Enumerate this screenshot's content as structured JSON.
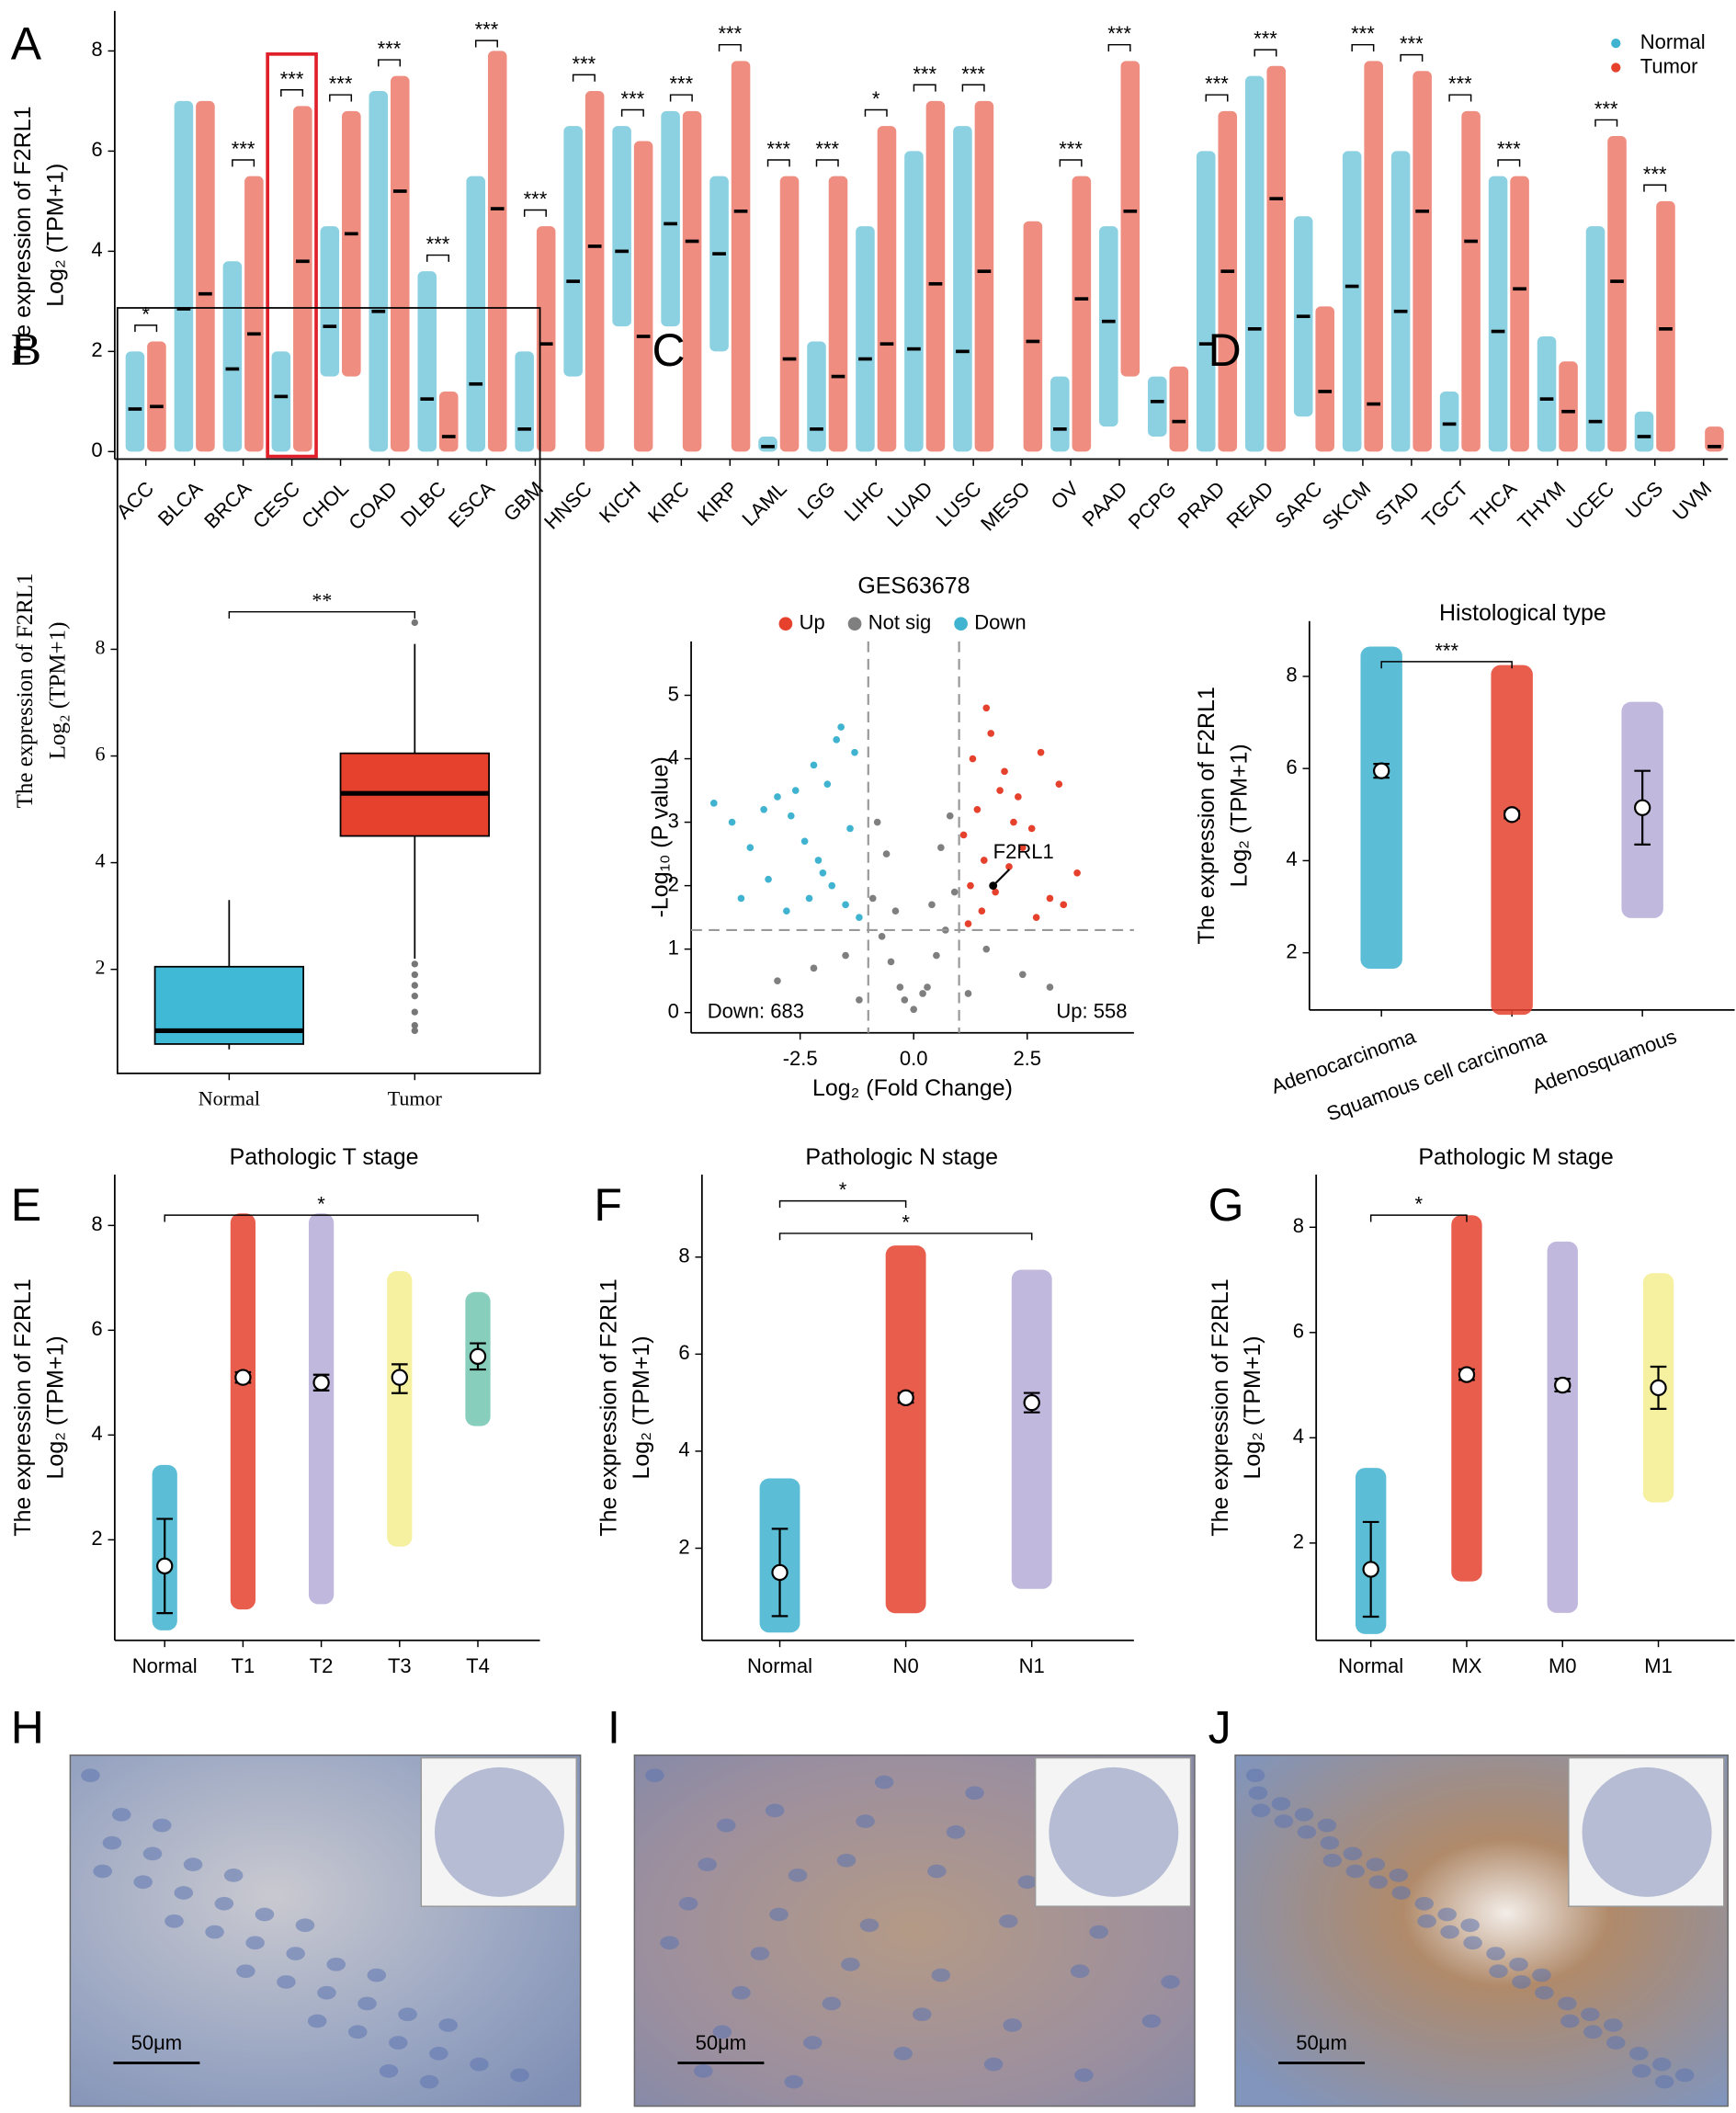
{
  "chart_data": [
    {
      "type": "strip",
      "label": "A",
      "ylabel": [
        "The expression of F2RL1",
        "Log₂ (TPM+1)"
      ],
      "categories": [
        "ACC",
        "BLCA",
        "BRCA",
        "CESC",
        "CHOL",
        "COAD",
        "DLBC",
        "ESCA",
        "GBM",
        "HNSC",
        "KICH",
        "KIRC",
        "KIRP",
        "LAML",
        "LGG",
        "LIHC",
        "LUAD",
        "LUSC",
        "MESO",
        "OV",
        "PAAD",
        "PCPG",
        "PRAD",
        "READ",
        "SARC",
        "SKCM",
        "STAD",
        "TGCT",
        "THCA",
        "THYM",
        "UCEC",
        "UCS",
        "UVM"
      ],
      "series": [
        {
          "name": "Normal",
          "color": "#3fb3cf",
          "values": [
            0.85,
            2.85,
            1.65,
            1.1,
            2.5,
            2.8,
            1.05,
            1.35,
            0.45,
            3.4,
            4.0,
            4.55,
            3.95,
            0.1,
            0.45,
            1.85,
            2.05,
            2.0,
            null,
            0.45,
            2.6,
            1.0,
            2.15,
            2.45,
            2.7,
            3.3,
            2.8,
            0.55,
            2.4,
            1.05,
            0.6,
            0.3,
            null
          ],
          "low": [
            0,
            0,
            0,
            0,
            1.5,
            0,
            0,
            0,
            0,
            1.5,
            2.5,
            2.5,
            2.0,
            0,
            0,
            0,
            0,
            0,
            null,
            0,
            0.5,
            0.3,
            0,
            0,
            0.7,
            0,
            0,
            0,
            0,
            0,
            0,
            0,
            null
          ],
          "high": [
            2.0,
            7.0,
            3.8,
            2.0,
            4.5,
            7.2,
            3.6,
            5.5,
            2.0,
            6.5,
            6.5,
            6.8,
            5.5,
            0.3,
            2.2,
            4.5,
            6.0,
            6.5,
            null,
            1.5,
            4.5,
            1.5,
            6.0,
            7.5,
            4.7,
            6.0,
            6.0,
            1.2,
            5.5,
            2.3,
            4.5,
            0.8,
            null
          ]
        },
        {
          "name": "Tumor",
          "color": "#e5412d",
          "values": [
            0.9,
            3.15,
            2.35,
            3.8,
            4.35,
            5.2,
            0.3,
            4.85,
            2.15,
            4.1,
            2.3,
            4.2,
            4.8,
            1.85,
            1.5,
            2.15,
            3.35,
            3.6,
            2.2,
            3.05,
            4.8,
            0.6,
            3.6,
            5.05,
            1.2,
            0.95,
            4.8,
            4.2,
            3.25,
            0.8,
            3.4,
            2.45,
            0.1
          ],
          "low": [
            0,
            0,
            0,
            0,
            1.5,
            0,
            0,
            0,
            0,
            0,
            0,
            0,
            0,
            0,
            0,
            0,
            0,
            0,
            0,
            0,
            1.5,
            0,
            0,
            0,
            0,
            0,
            0,
            0,
            0,
            0,
            0,
            0,
            0
          ],
          "high": [
            2.2,
            7.0,
            5.5,
            6.9,
            6.8,
            7.5,
            1.2,
            8.0,
            4.5,
            7.2,
            6.2,
            6.8,
            7.8,
            5.5,
            5.5,
            6.5,
            7.0,
            7.0,
            4.6,
            5.5,
            7.8,
            1.7,
            6.8,
            7.7,
            2.9,
            7.8,
            7.6,
            6.8,
            5.5,
            1.8,
            6.3,
            5.0,
            0.5
          ]
        }
      ],
      "significance": [
        "*",
        null,
        "***",
        "***",
        "***",
        "***",
        "***",
        "***",
        "***",
        "***",
        "***",
        "***",
        "***",
        "***",
        "***",
        "*",
        "***",
        "***",
        null,
        "***",
        "***",
        null,
        "***",
        "***",
        null,
        "***",
        "***",
        "***",
        "***",
        null,
        "***",
        "***",
        null
      ],
      "highlight": "CESC",
      "ylim": [
        -0.15,
        8.8
      ],
      "yticks": [
        0,
        2,
        4,
        6,
        8
      ],
      "legend": "top-right"
    },
    {
      "type": "box",
      "label": "B",
      "ylabel": [
        "The expression of F2RL1",
        "Log₂ (TPM+1)"
      ],
      "categories": [
        "Normal",
        "Tumor"
      ],
      "colors": [
        "#3fb9d6",
        "#e5412d"
      ],
      "whisker_low": [
        0.5,
        2.2
      ],
      "q1": [
        0.6,
        4.5
      ],
      "median": [
        0.85,
        5.3
      ],
      "q3": [
        2.05,
        6.05
      ],
      "whisker_high": [
        3.3,
        8.1
      ],
      "outliers": [
        [],
        [
          8.5,
          2.1,
          1.9,
          1.7,
          1.5,
          1.2,
          0.95,
          0.85
        ]
      ],
      "comparisons": [
        {
          "groups": [
            "Normal",
            "Tumor"
          ],
          "label": "**"
        }
      ],
      "ylim": [
        0.05,
        14.4
      ],
      "yticks": [
        2,
        4,
        6,
        8
      ]
    },
    {
      "type": "volcano",
      "label": "C",
      "title": "GES63678",
      "xlabel": "Log₂ (Fold Change)",
      "ylabel": [
        "-Log₁₀ (P value)"
      ],
      "series": [
        {
          "name": "Up",
          "color": "#e5412d",
          "x": [
            1.2,
            1.5,
            1.8,
            2.1,
            2.4,
            2.7,
            3.0,
            3.3,
            3.6,
            1.1,
            1.4,
            1.9,
            2.2,
            2.6,
            1.3,
            1.7,
            2.0,
            2.3,
            1.6,
            2.8,
            3.2,
            1.25,
            1.55
          ],
          "values": [
            1.4,
            1.6,
            1.9,
            2.3,
            2.6,
            1.5,
            1.8,
            1.7,
            2.2,
            2.8,
            3.2,
            3.5,
            3.0,
            2.9,
            4.0,
            4.4,
            3.8,
            3.4,
            4.8,
            4.1,
            3.6,
            2.0,
            2.4
          ]
        },
        {
          "name": "Not sig",
          "color": "#7f7f7f",
          "x": [
            -0.9,
            -0.7,
            -0.5,
            -0.3,
            0,
            0.3,
            0.5,
            0.7,
            0.9,
            -0.6,
            0.6,
            -0.2,
            0.2,
            -0.8,
            0.8,
            -1.5,
            -2.2,
            1.6,
            2.4,
            -3,
            3,
            -0.4,
            0.4,
            1.2,
            -1.2
          ],
          "values": [
            1.8,
            1.2,
            0.8,
            0.4,
            0.05,
            0.4,
            0.9,
            1.3,
            1.9,
            2.5,
            2.6,
            0.2,
            0.3,
            3.0,
            3.1,
            0.9,
            0.7,
            1.0,
            0.6,
            0.5,
            0.4,
            1.6,
            1.7,
            0.3,
            0.2
          ]
        },
        {
          "name": "Down",
          "color": "#3fb3cf",
          "x": [
            -1.2,
            -1.5,
            -1.8,
            -2.1,
            -2.4,
            -2.7,
            -3.0,
            -3.3,
            -3.6,
            -4.0,
            -4.4,
            -1.4,
            -1.9,
            -2.2,
            -2.6,
            -1.3,
            -1.7,
            -2.0,
            -2.3,
            -2.8,
            -3.2,
            -3.8,
            -1.6
          ],
          "values": [
            1.5,
            1.7,
            2.0,
            2.4,
            2.7,
            3.1,
            3.4,
            3.2,
            2.6,
            3.0,
            3.3,
            2.9,
            3.6,
            3.9,
            3.5,
            4.1,
            4.3,
            2.2,
            1.8,
            1.6,
            2.1,
            1.8,
            4.5
          ]
        }
      ],
      "highlight_point": {
        "label": "F2RL1",
        "x": 1.75,
        "y": 2.0
      },
      "down_count_label": "Down: 683",
      "up_count_label": "Up: 558",
      "fc_thresholds": [
        -1,
        1
      ],
      "p_threshold": 1.3,
      "xlim": [
        -4.9,
        4.85
      ],
      "xticks": [
        -2.5,
        {
          "value": 0,
          "label": "0.0"
        },
        2.5
      ],
      "ylim": [
        -0.32,
        5.85
      ],
      "yticks": [
        0,
        1,
        2,
        3,
        4,
        5
      ],
      "legend": "top"
    },
    {
      "type": "dot",
      "label": "D",
      "title": "Histological type",
      "ylabel": [
        "The expression of F2RL1",
        "Log₂ (TPM+1)"
      ],
      "categories": [
        "Adenocarcinoma",
        "Squamous cell carcinoma",
        "Adenosquamous"
      ],
      "colors": [
        "#3fb3cf",
        "#e5412d",
        "#b6acd8"
      ],
      "values": [
        5.95,
        5.0,
        5.15
      ],
      "low": [
        1.8,
        0.8,
        2.9
      ],
      "high": [
        8.5,
        8.1,
        7.3
      ],
      "ci_low": [
        5.8,
        4.92,
        4.35
      ],
      "ci_high": [
        6.1,
        5.08,
        5.95
      ],
      "comparisons": [
        {
          "groups": [
            "Adenocarcinoma",
            "Squamous cell carcinoma"
          ],
          "label": "***"
        }
      ],
      "ylim": [
        0.76,
        9.2
      ],
      "yticks": [
        2,
        4,
        6,
        8
      ]
    },
    {
      "type": "dot",
      "label": "E",
      "title": "Pathologic T stage",
      "ylabel": [
        "The expression of F2RL1",
        "Log₂ (TPM+1)"
      ],
      "categories": [
        "Normal",
        "T1",
        "T2",
        "T3",
        "T4"
      ],
      "colors": [
        "#3fb3cf",
        "#e5412d",
        "#b6acd8",
        "#f4ef8f",
        "#72c6b0"
      ],
      "values": [
        1.5,
        5.1,
        5.0,
        5.1,
        5.5
      ],
      "low": [
        0.4,
        0.8,
        0.9,
        2.0,
        4.3
      ],
      "high": [
        3.3,
        8.1,
        8.1,
        7.0,
        6.6
      ],
      "ci_low": [
        0.6,
        5.0,
        4.85,
        4.8,
        5.25
      ],
      "ci_high": [
        2.4,
        5.2,
        5.15,
        5.35,
        5.75
      ],
      "comparisons": [
        {
          "groups": [
            "Normal",
            "T4"
          ],
          "label": "*"
        }
      ],
      "ylim": [
        0.08,
        8.97
      ],
      "yticks": [
        2,
        4,
        6,
        8
      ]
    },
    {
      "type": "dot",
      "label": "F",
      "title": "Pathologic N stage",
      "ylabel": [
        "The expression of F2RL1",
        "Log₂ (TPM+1)"
      ],
      "categories": [
        "Normal",
        "N0",
        "N1"
      ],
      "colors": [
        "#3fb3cf",
        "#e5412d",
        "#b6acd8"
      ],
      "values": [
        1.5,
        5.1,
        5.0
      ],
      "low": [
        0.4,
        0.8,
        1.3
      ],
      "high": [
        3.3,
        8.1,
        7.6
      ],
      "ci_low": [
        0.6,
        5.0,
        4.8
      ],
      "ci_high": [
        2.4,
        5.2,
        5.2
      ],
      "comparisons": [
        {
          "groups": [
            "Normal",
            "N0"
          ],
          "label": "*"
        },
        {
          "groups": [
            "Normal",
            "N1"
          ],
          "label": "*"
        }
      ],
      "ylim": [
        0.1,
        9.7
      ],
      "yticks": [
        2,
        4,
        6,
        8
      ]
    },
    {
      "type": "dot",
      "label": "G",
      "title": "Pathologic M stage",
      "ylabel": [
        "The expression of F2RL1",
        "Log₂ (TPM+1)"
      ],
      "categories": [
        "Normal",
        "MX",
        "M0",
        "M1"
      ],
      "colors": [
        "#3fb3cf",
        "#e5412d",
        "#b6acd8",
        "#f4ef8f"
      ],
      "values": [
        1.5,
        5.2,
        5.0,
        4.95
      ],
      "low": [
        0.4,
        1.4,
        0.8,
        2.9
      ],
      "high": [
        3.3,
        8.1,
        7.6,
        7.0
      ],
      "ci_low": [
        0.6,
        5.1,
        4.88,
        4.55
      ],
      "ci_high": [
        2.4,
        5.3,
        5.12,
        5.35
      ],
      "comparisons": [
        {
          "groups": [
            "Normal",
            "MX"
          ],
          "label": "*"
        }
      ],
      "ylim": [
        0.15,
        9.0
      ],
      "yticks": [
        2,
        4,
        6,
        8
      ]
    }
  ],
  "images": [
    {
      "label": "H",
      "scale_bar": "50μm"
    },
    {
      "label": "I",
      "scale_bar": "50μm"
    },
    {
      "label": "J",
      "scale_bar": "50μm"
    }
  ]
}
